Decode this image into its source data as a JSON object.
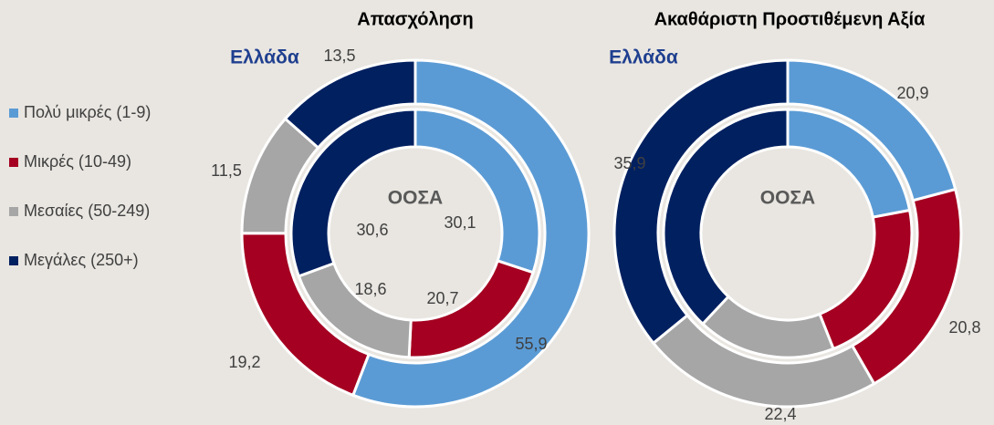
{
  "legend": {
    "categories": [
      "Πολύ μικρές (1-9)",
      "Μικρές (10-49)",
      "Μεσαίες (50-249)",
      "Μεγάλες  (250+)"
    ],
    "colors": [
      "#5b9bd5",
      "#a50021",
      "#a6a6a6",
      "#002060"
    ]
  },
  "chart_data": [
    {
      "type": "pie",
      "title": "Απασχόληση",
      "center_label": "ΟΟΣΑ",
      "series": [
        {
          "name": "Ελλάδα",
          "values": [
            55.9,
            19.2,
            11.5,
            13.5
          ],
          "value_labels": [
            "55,9",
            "19,2",
            "11,5",
            "13,5"
          ]
        },
        {
          "name": "ΟΟΣΑ",
          "values": [
            30.1,
            20.7,
            18.6,
            30.6
          ],
          "value_labels": [
            "30,1",
            "20,7",
            "18,6",
            "30,6"
          ]
        }
      ]
    },
    {
      "type": "pie",
      "title": "Ακαθάριστη Προστιθέμενη Αξία",
      "center_label": "ΟΟΣΑ",
      "series": [
        {
          "name": "Ελλάδα",
          "values": [
            20.9,
            20.8,
            22.4,
            35.9
          ],
          "value_labels": [
            "20,9",
            "20,8",
            "22,4",
            "35,9"
          ]
        },
        {
          "name": "ΟΟΣΑ",
          "values": [
            22,
            22,
            18,
            38
          ]
        }
      ]
    }
  ]
}
